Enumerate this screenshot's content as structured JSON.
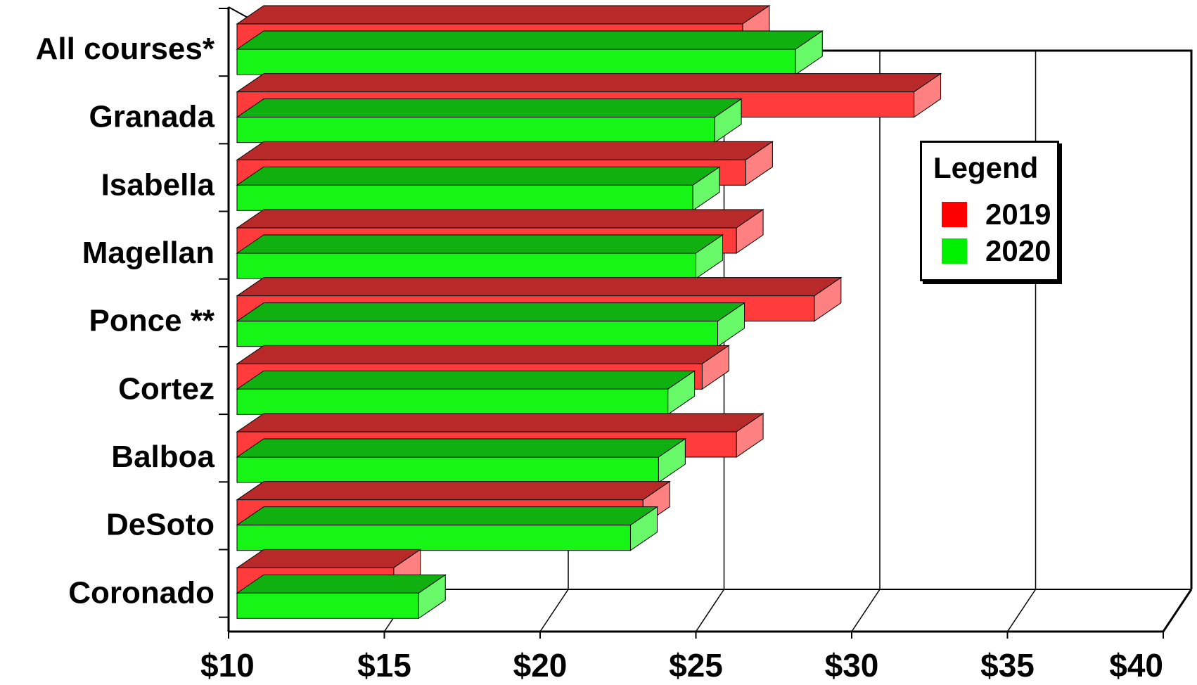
{
  "chart_data": {
    "type": "bar",
    "orientation": "horizontal",
    "style": "3d",
    "categories": [
      "All courses*",
      "Granada",
      "Isabella",
      "Magellan",
      "Ponce **",
      "Cortez",
      "Balboa",
      "DeSoto",
      "Coronado"
    ],
    "series": [
      {
        "name": "2019",
        "color": "#ff3b3b",
        "values": [
          26.5,
          32.0,
          26.6,
          26.3,
          28.8,
          25.2,
          26.3,
          23.3,
          15.3
        ]
      },
      {
        "name": "2020",
        "color": "#17f517",
        "values": [
          28.2,
          25.6,
          24.9,
          25.0,
          25.7,
          24.1,
          23.8,
          22.9,
          16.1
        ]
      }
    ],
    "xlim": [
      10,
      40
    ],
    "xticks": [
      "$10",
      "$15",
      "$20",
      "$25",
      "$30",
      "$35",
      "$40"
    ],
    "grid": true,
    "legend": {
      "title": "Legend",
      "placement": "right"
    },
    "title": "",
    "xlabel": "",
    "ylabel": ""
  }
}
